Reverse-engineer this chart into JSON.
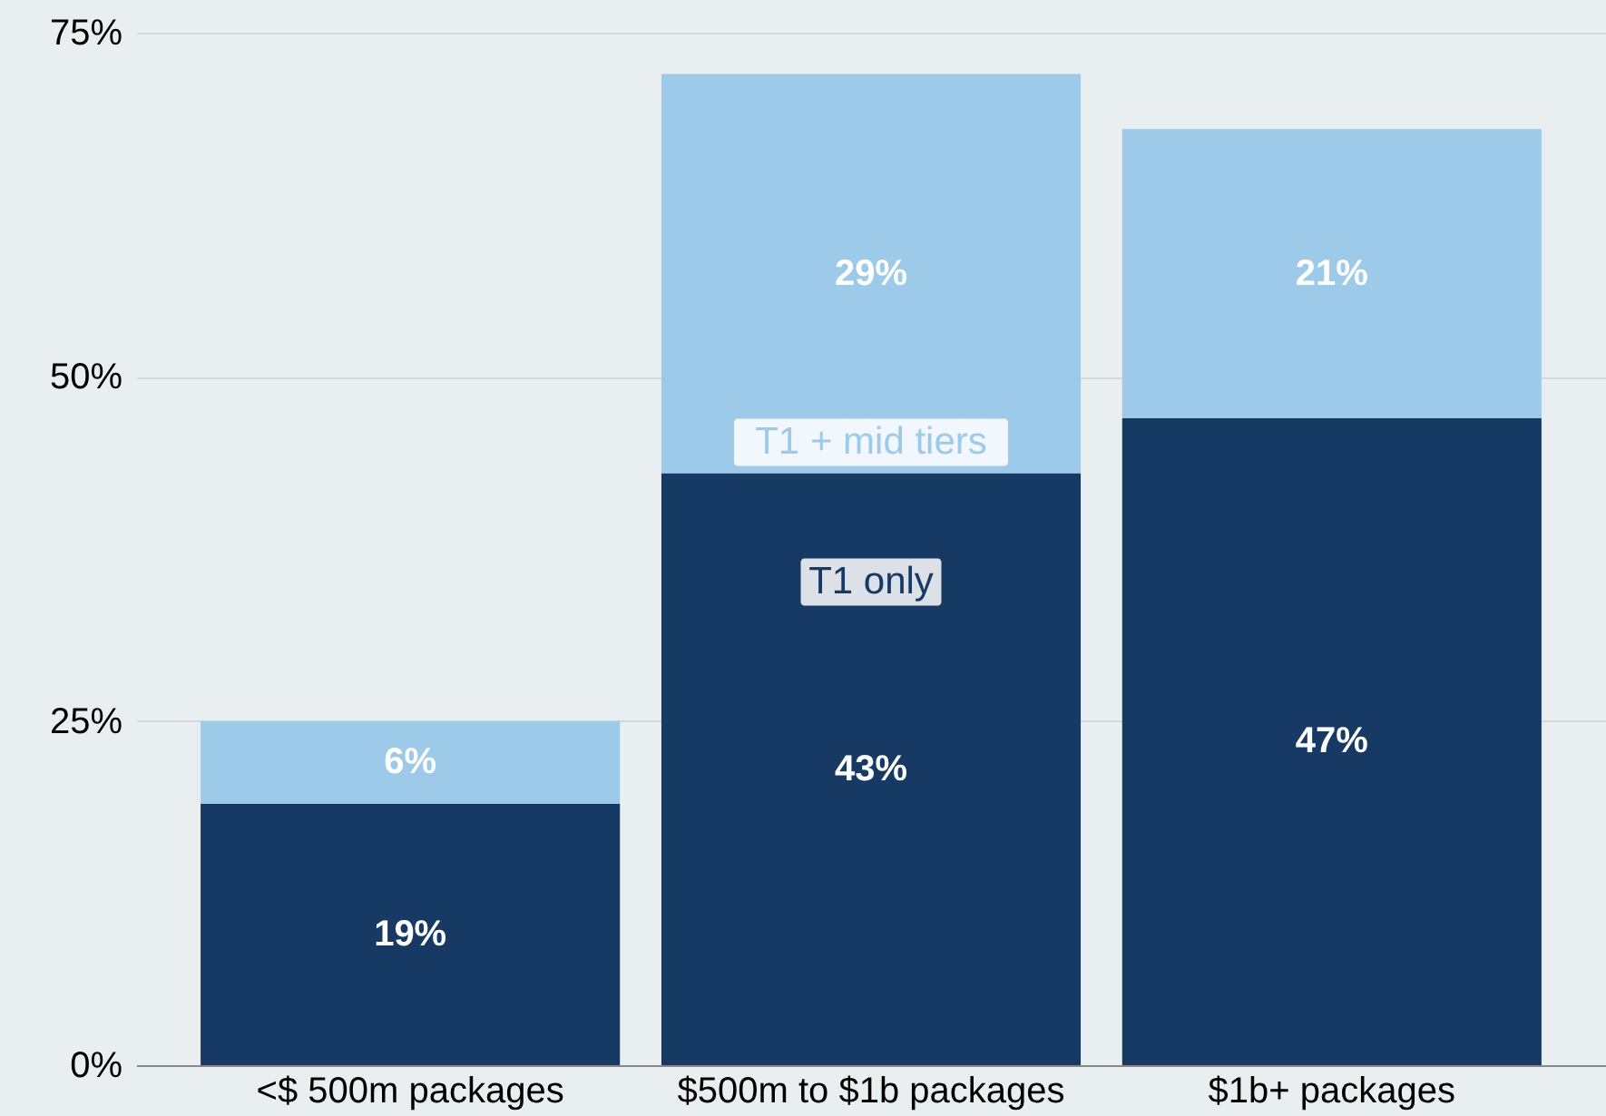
{
  "chart_data": {
    "type": "bar",
    "stacked": true,
    "categories": [
      "<$ 500m packages",
      "$500m to $1b packages",
      "$1b+ packages"
    ],
    "series": [
      {
        "name": "T1 only",
        "color": "#173a64",
        "values": [
          19,
          43,
          47
        ],
        "value_labels": [
          "19%",
          "43%",
          "47%"
        ]
      },
      {
        "name": "T1 + mid tiers",
        "color": "#9ecae9",
        "values": [
          6,
          29,
          21
        ],
        "value_labels": [
          "6%",
          "29%",
          "21%"
        ]
      }
    ],
    "ylim": [
      0,
      75
    ],
    "yticks": [
      {
        "value": 0,
        "label": "0%"
      },
      {
        "value": 25,
        "label": "25%"
      },
      {
        "value": 50,
        "label": "50%"
      },
      {
        "value": 75,
        "label": "75%"
      }
    ],
    "grid": "y"
  }
}
